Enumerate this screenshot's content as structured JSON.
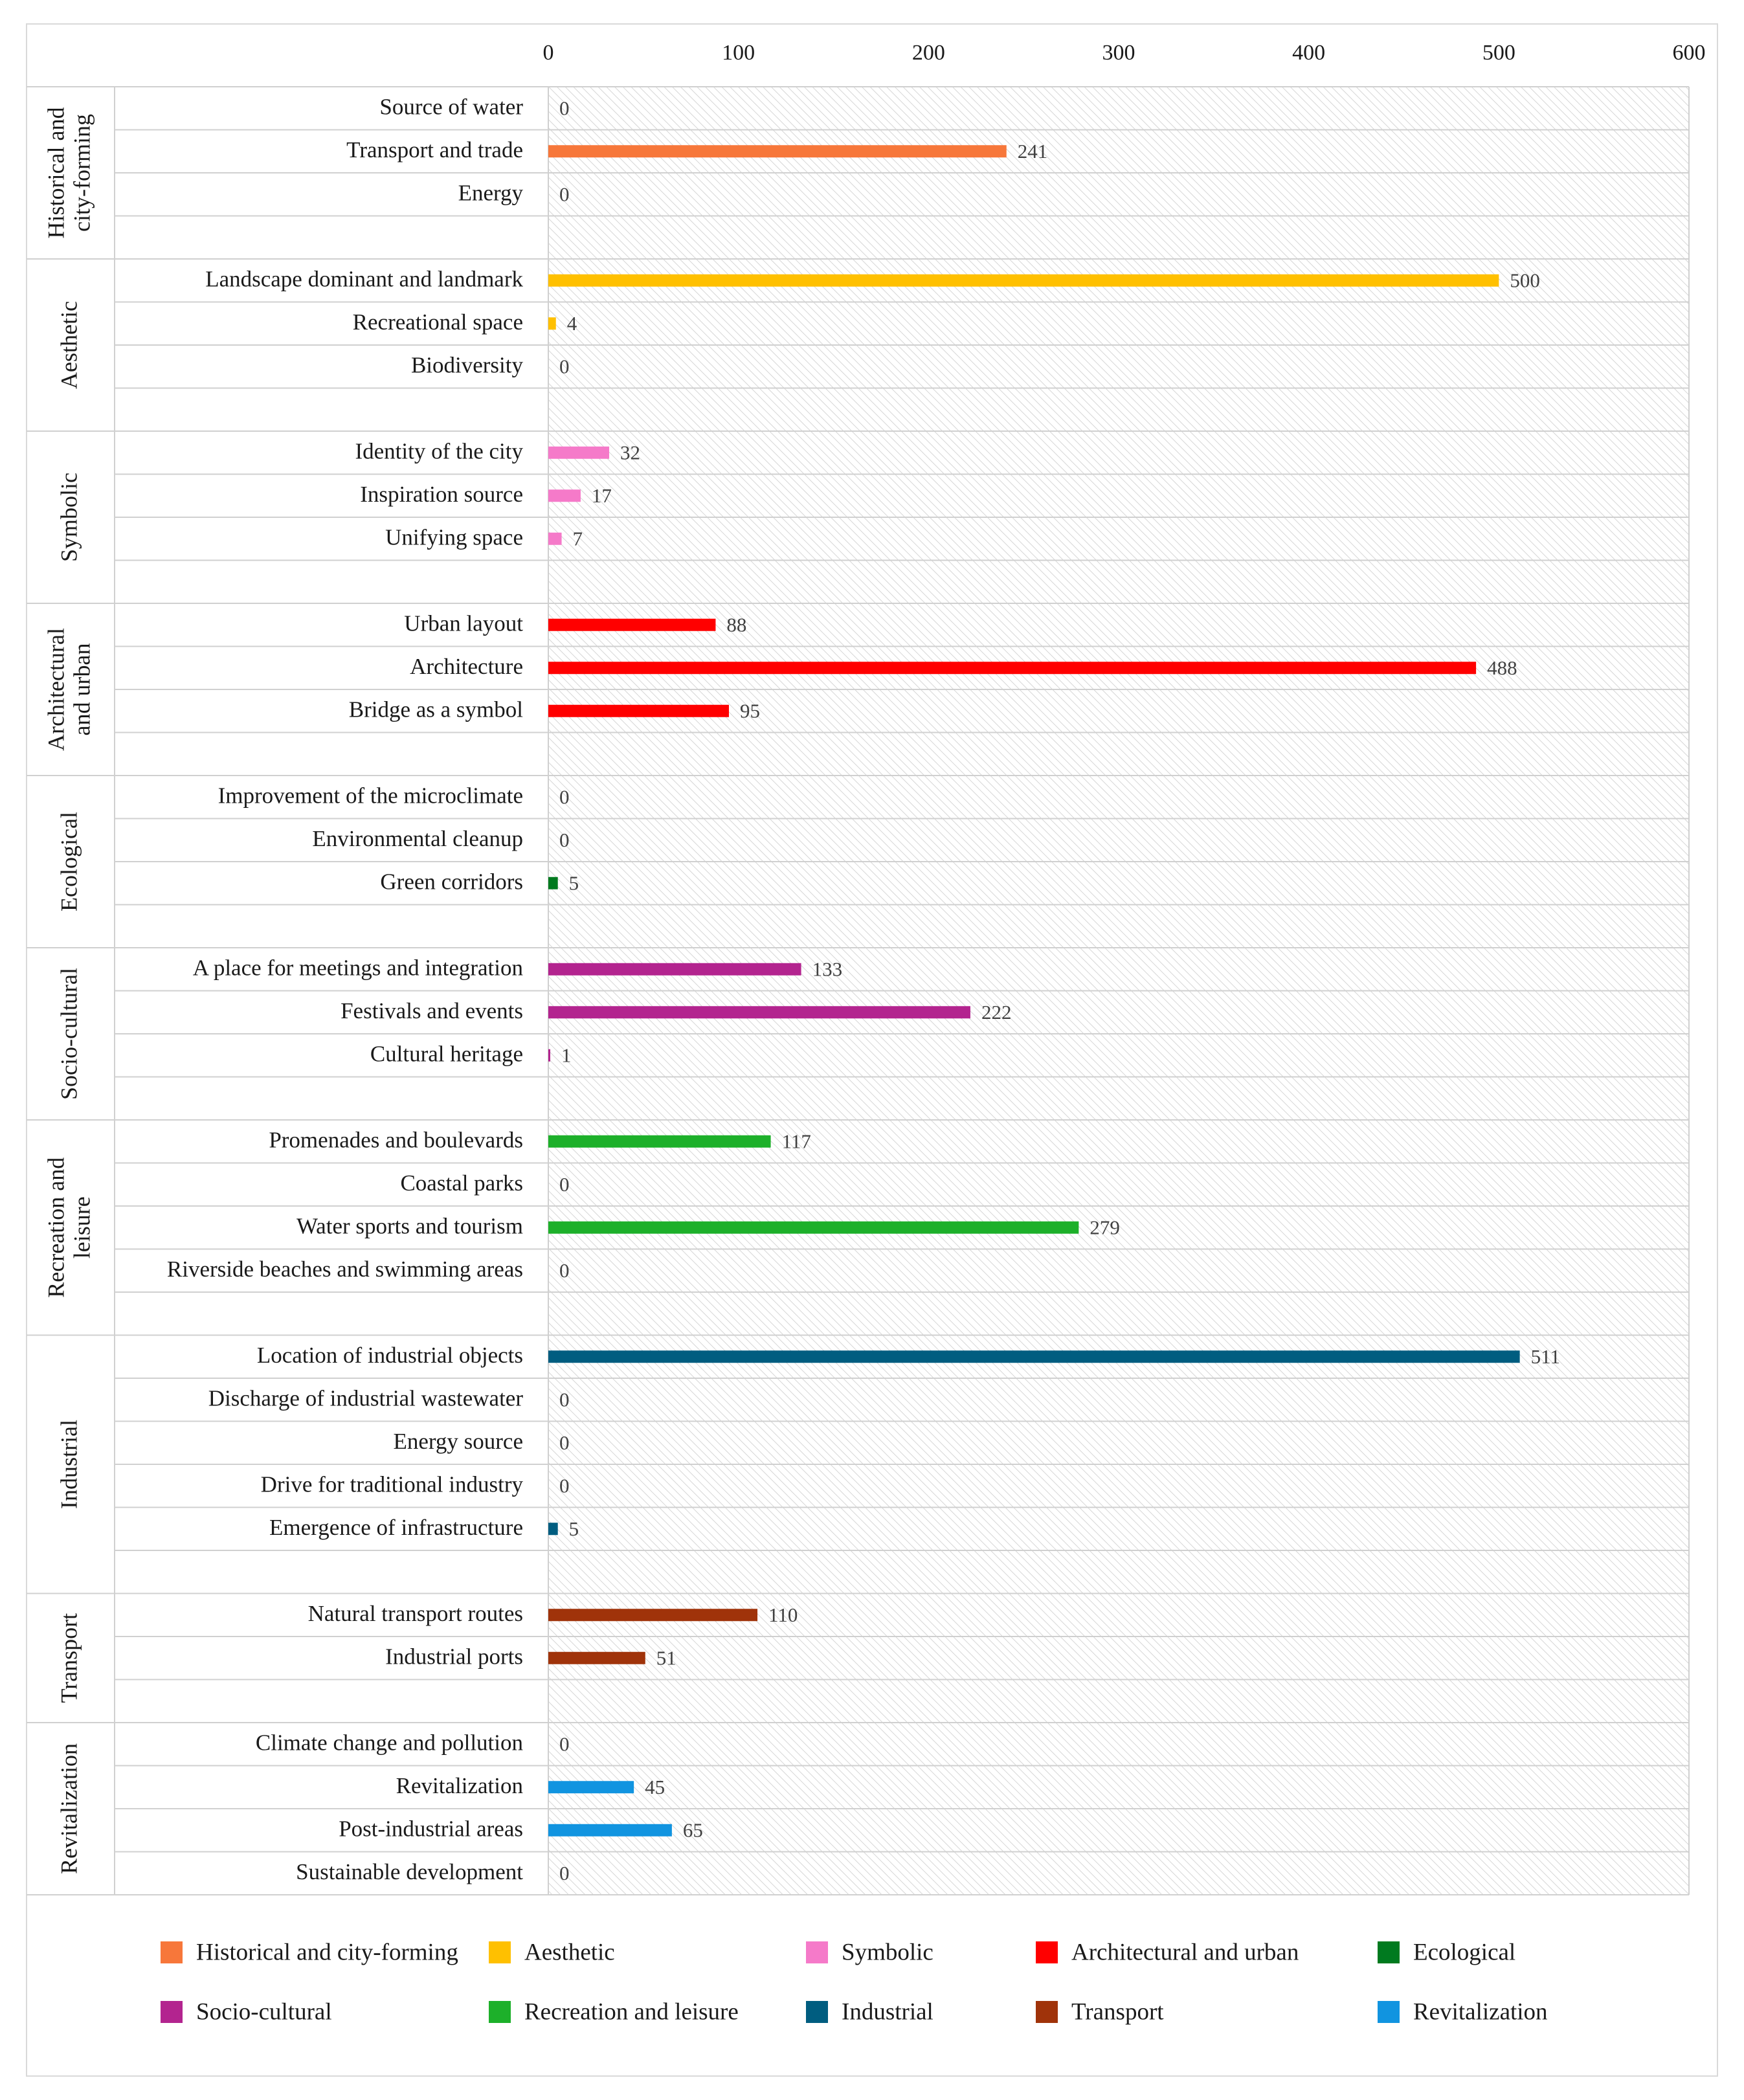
{
  "chart_data": {
    "type": "bar",
    "orientation": "horizontal",
    "title": "",
    "xlabel": "",
    "ylabel": "",
    "xlim": [
      0,
      600
    ],
    "ticks": [
      "0",
      "100",
      "200",
      "300",
      "400",
      "500",
      "600"
    ],
    "grid": true,
    "legend_position": "bottom",
    "groups": [
      {
        "name": "Historical and city-forming",
        "label_lines": [
          "Historical and",
          "city-forming"
        ],
        "color": "#F7773A",
        "spacer": true,
        "items": [
          {
            "label": "Source of water",
            "value": 0
          },
          {
            "label": "Transport and trade",
            "value": 241
          },
          {
            "label": "Energy",
            "value": 0
          }
        ]
      },
      {
        "name": "Aesthetic",
        "label_lines": [
          "Aesthetic"
        ],
        "color": "#FFC000",
        "spacer": true,
        "items": [
          {
            "label": "Landscape dominant and landmark",
            "value": 500
          },
          {
            "label": "Recreational space",
            "value": 4
          },
          {
            "label": "Biodiversity",
            "value": 0
          }
        ]
      },
      {
        "name": "Symbolic",
        "label_lines": [
          "Symbolic"
        ],
        "color": "#F57AC9",
        "spacer": true,
        "items": [
          {
            "label": "Identity of the city",
            "value": 32
          },
          {
            "label": "Inspiration source",
            "value": 17
          },
          {
            "label": "Unifying space",
            "value": 7
          }
        ]
      },
      {
        "name": "Architectural and urban",
        "label_lines": [
          "Architectural",
          "and urban"
        ],
        "color": "#FF0000",
        "spacer": true,
        "items": [
          {
            "label": "Urban layout",
            "value": 88
          },
          {
            "label": "Architecture",
            "value": 488
          },
          {
            "label": "Bridge as a symbol",
            "value": 95
          }
        ]
      },
      {
        "name": "Ecological",
        "label_lines": [
          "Ecological"
        ],
        "color": "#007A1F",
        "spacer": true,
        "items": [
          {
            "label": "Improvement of the microclimate",
            "value": 0
          },
          {
            "label": "Environmental cleanup",
            "value": 0
          },
          {
            "label": "Green corridors",
            "value": 5
          }
        ]
      },
      {
        "name": "Socio-cultural",
        "label_lines": [
          "Socio-cultural"
        ],
        "color": "#B3248F",
        "spacer": true,
        "items": [
          {
            "label": "A place for meetings and integration",
            "value": 133
          },
          {
            "label": "Festivals and events",
            "value": 222
          },
          {
            "label": "Cultural heritage",
            "value": 1
          }
        ]
      },
      {
        "name": "Recreation and leisure",
        "label_lines": [
          "Recreation and",
          "leisure"
        ],
        "color": "#1DB02A",
        "spacer": true,
        "items": [
          {
            "label": "Promenades and boulevards",
            "value": 117
          },
          {
            "label": "Coastal parks",
            "value": 0
          },
          {
            "label": "Water sports and tourism",
            "value": 279
          },
          {
            "label": "Riverside beaches and swimming areas",
            "value": 0
          }
        ]
      },
      {
        "name": "Industrial",
        "label_lines": [
          "Industrial"
        ],
        "color": "#005D80",
        "spacer": true,
        "items": [
          {
            "label": "Location of industrial objects",
            "value": 511
          },
          {
            "label": "Discharge of industrial wastewater",
            "value": 0
          },
          {
            "label": "Energy source",
            "value": 0
          },
          {
            "label": "Drive for traditional industry",
            "value": 0
          },
          {
            "label": "Emergence of infrastructure",
            "value": 5
          }
        ]
      },
      {
        "name": "Transport",
        "label_lines": [
          "Transport"
        ],
        "color": "#A0330A",
        "spacer": true,
        "items": [
          {
            "label": "Natural transport routes",
            "value": 110
          },
          {
            "label": "Industrial ports",
            "value": 51
          }
        ]
      },
      {
        "name": "Revitalization",
        "label_lines": [
          "Revitalization"
        ],
        "color": "#1194E0",
        "spacer": false,
        "items": [
          {
            "label": "Climate change and pollution",
            "value": 0
          },
          {
            "label": "Revitalization",
            "value": 45
          },
          {
            "label": "Post-industrial areas",
            "value": 65
          },
          {
            "label": "Sustainable development",
            "value": 0
          }
        ]
      }
    ],
    "legend": [
      {
        "label": "Historical and city-forming",
        "color": "#F7773A"
      },
      {
        "label": "Aesthetic",
        "color": "#FFC000"
      },
      {
        "label": "Symbolic",
        "color": "#F57AC9"
      },
      {
        "label": "Architectural and urban",
        "color": "#FF0000"
      },
      {
        "label": "Ecological",
        "color": "#007A1F"
      },
      {
        "label": "Socio-cultural",
        "color": "#B3248F"
      },
      {
        "label": "Recreation and leisure",
        "color": "#1DB02A"
      },
      {
        "label": "Industrial",
        "color": "#005D80"
      },
      {
        "label": "Transport",
        "color": "#A0330A"
      },
      {
        "label": "Revitalization",
        "color": "#1194E0"
      }
    ]
  }
}
